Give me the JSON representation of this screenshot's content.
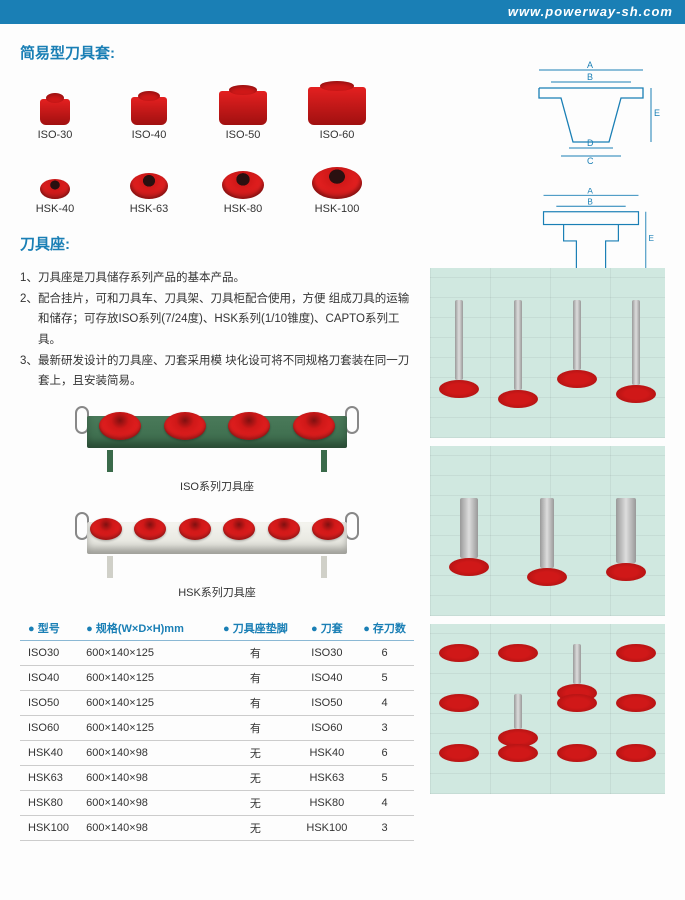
{
  "header": {
    "url": "www.powerway-sh.com"
  },
  "section1": {
    "title": "简易型刀具套:",
    "iso_items": [
      "ISO-30",
      "ISO-40",
      "ISO-50",
      "ISO-60"
    ],
    "hsk_items": [
      "HSK-40",
      "HSK-63",
      "HSK-80",
      "HSK-100"
    ],
    "iso_widths": [
      30,
      36,
      48,
      58
    ],
    "iso_heights": [
      26,
      28,
      34,
      38
    ],
    "hsk_widths": [
      30,
      38,
      42,
      50
    ],
    "hsk_heights": [
      20,
      26,
      28,
      32
    ],
    "dim_labels": [
      "A",
      "B",
      "C",
      "D",
      "E"
    ]
  },
  "section2": {
    "title": "刀具座:",
    "descriptions": [
      "刀具座是刀具储存系列产品的基本产品。",
      "配合挂片，可和刀具车、刀具架、刀具柜配合使用，方便 组成刀具的运输和储存；可存放ISO系列(7/24度)、HSK系列(1/10锥度)、CAPTO系列工具。",
      "最新研发设计的刀具座、刀套采用模 块化设可将不同规格刀套装在同一刀套上，且安装简易。"
    ],
    "holder1_caption": "ISO系列刀具座",
    "holder2_caption": "HSK系列刀具座",
    "holder1_cups": 4,
    "holder2_cups": 6
  },
  "table": {
    "headers": [
      "型号",
      "规格(W×D×H)mm",
      "刀具座垫脚",
      "刀套",
      "存刀数"
    ],
    "rows": [
      [
        "ISO30",
        "600×140×125",
        "有",
        "ISO30",
        "6"
      ],
      [
        "ISO40",
        "600×140×125",
        "有",
        "ISO40",
        "5"
      ],
      [
        "ISO50",
        "600×140×125",
        "有",
        "ISO50",
        "4"
      ],
      [
        "ISO60",
        "600×140×125",
        "有",
        "ISO60",
        "3"
      ],
      [
        "HSK40",
        "600×140×98",
        "无",
        "HSK40",
        "6"
      ],
      [
        "HSK63",
        "600×140×98",
        "无",
        "HSK63",
        "5"
      ],
      [
        "HSK80",
        "600×140×98",
        "无",
        "HSK80",
        "4"
      ],
      [
        "HSK100",
        "600×140×98",
        "无",
        "HSK100",
        "3"
      ]
    ]
  },
  "colors": {
    "brand_blue": "#1a7fb5",
    "tool_red": "#d01818",
    "tray_green": "#3a6a4a",
    "tray_white": "#e8e8e0"
  }
}
